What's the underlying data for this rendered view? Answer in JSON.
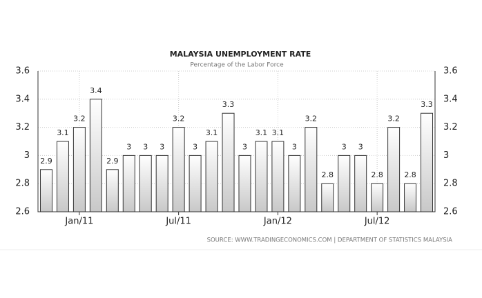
{
  "chart_data": {
    "type": "bar",
    "title": "MALAYSIA UNEMPLOYMENT RATE",
    "subtitle": "Percentage of the Labor Force",
    "source": "SOURCE:  WWW.TRADINGECONOMICS.COM  |  DEPARTMENT  OF  STATISTICS  MALAYSIA",
    "categories": [
      null,
      null,
      "Jan/11",
      null,
      null,
      null,
      null,
      null,
      "Jul/11",
      null,
      null,
      null,
      null,
      null,
      "Jan/12",
      null,
      null,
      null,
      null,
      null,
      "Jul/12",
      null,
      null,
      null
    ],
    "values": [
      2.9,
      3.1,
      3.2,
      3.4,
      2.9,
      3,
      3,
      3,
      3.2,
      3,
      3.1,
      3.3,
      3,
      3.1,
      3.1,
      3,
      3.2,
      2.8,
      3,
      3,
      2.8,
      3.2,
      2.8,
      3.3
    ],
    "color": "#d4d4d4",
    "ylim": [
      2.6,
      3.6
    ],
    "yticks": [
      2.6,
      2.8,
      3,
      3.2,
      3.4,
      3.6
    ],
    "grid": true
  }
}
